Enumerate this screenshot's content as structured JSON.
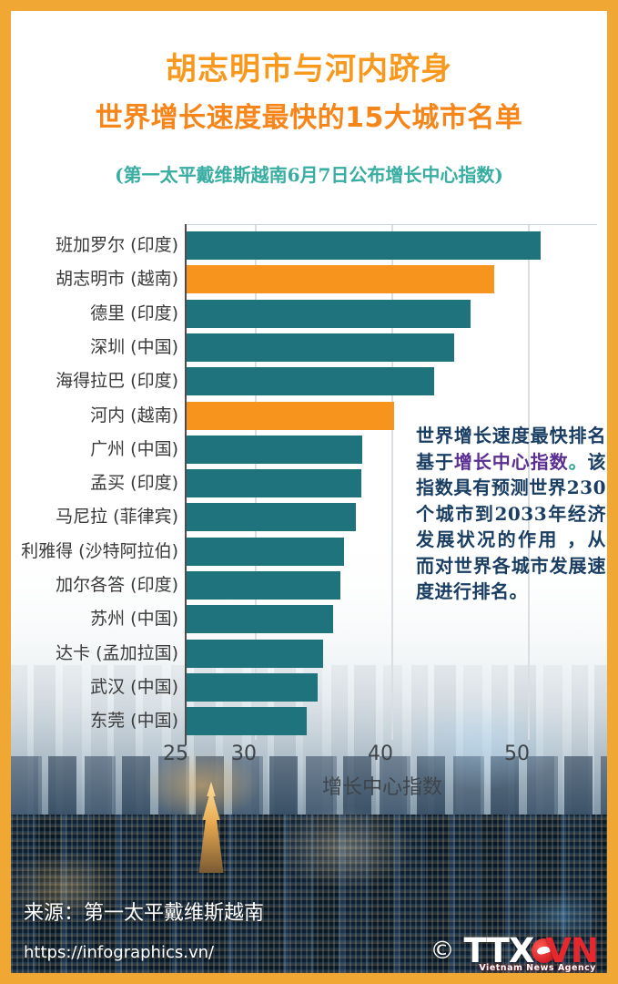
{
  "header": {
    "title_line1": "胡志明市与河内跻身",
    "title_line2": "世界增长速度最快的15大城市名单",
    "subtitle": "(第一太平戴维斯越南6月7日公布增长中心指数)"
  },
  "chart_data": {
    "type": "bar",
    "orientation": "horizontal",
    "categories": [
      "班加罗尔 (印度)",
      "胡志明市 (越南)",
      "德里 (印度)",
      "深圳 (中国)",
      "海得拉巴 (印度)",
      "河内 (越南)",
      "广州 (中国)",
      "孟买 (印度)",
      "马尼拉 (菲律宾)",
      "利雅得 (沙特阿拉伯)",
      "加尔各答 (印度)",
      "苏州 (中国)",
      "达卡 (孟加拉国)",
      "武汉 (中国)",
      "东莞 (中国)"
    ],
    "values": [
      50.9,
      47.5,
      45.8,
      44.6,
      43.1,
      40.2,
      37.9,
      37.8,
      37.4,
      36.5,
      36.3,
      35.7,
      35.0,
      34.6,
      33.8
    ],
    "highlight_indices": [
      1,
      5
    ],
    "bar_color": "#1F737D",
    "highlight_color": "#F7941E",
    "xlabel": "增长中心指数",
    "x_ticks": [
      25,
      30,
      40,
      50
    ],
    "gridline_values": [
      30,
      40,
      50
    ],
    "xlim": [
      25,
      55
    ],
    "legend": "none",
    "grid": "vertical-light"
  },
  "annotation": {
    "segments": [
      {
        "text": "世界增长速度最快排名基于",
        "color_key": "note_navy"
      },
      {
        "text": "增长中心指数",
        "color_key": "note_purple"
      },
      {
        "text": "。",
        "color_key": "note_teal"
      },
      {
        "text": "该指数具有预测世界230个城市到2033年经济发展状况的作用 ，从而对世界各城市发展速度进行排名。",
        "color_key": "note_navy"
      }
    ]
  },
  "footer": {
    "source": "来源：第一太平戴维斯越南",
    "url": "https://infographics.vn/",
    "copyright": "©",
    "logo_part1": "TTX",
    "logo_part2": "VN",
    "logo_subtext": "Vietnam News Agency"
  },
  "colors": {
    "frame_orange": "#F1A733",
    "title1_orange": "#F8991D",
    "title2_orange": "#F6861A",
    "subtitle_teal": "#38ADA2",
    "bar_teal": "#1F737D",
    "bar_orange": "#F7941E",
    "label_gray": "#3A3A3A",
    "note_navy": "#1A3E63",
    "note_purple": "#5B2F91",
    "note_teal": "#2FA79B",
    "footer_white": "#FFFFFF",
    "logo_red": "#E4282E"
  }
}
